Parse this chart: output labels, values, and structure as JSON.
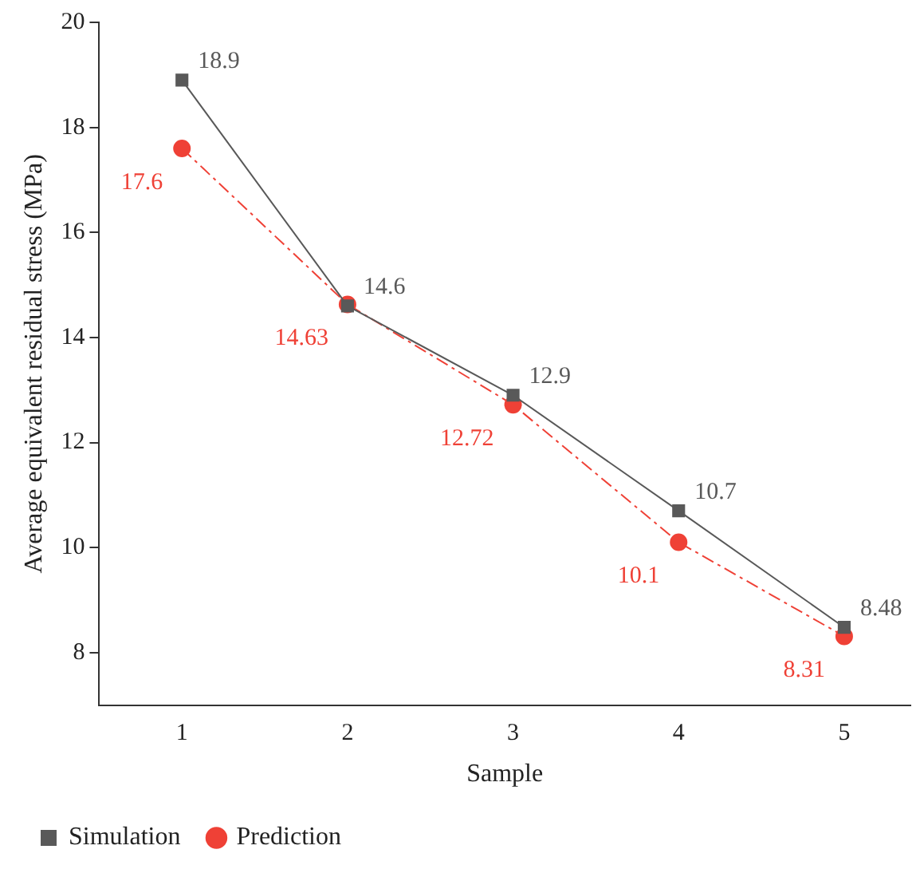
{
  "chart_data": {
    "type": "line",
    "xlabel": "Sample",
    "ylabel": "Average equivalent residual stress (MPa)",
    "x": [
      1,
      2,
      3,
      4,
      5
    ],
    "xlim": [
      0.5,
      5.4
    ],
    "xticks": [
      1,
      2,
      3,
      4,
      5
    ],
    "ylim": [
      7,
      20
    ],
    "yticks": [
      8,
      10,
      12,
      14,
      16,
      18,
      20
    ],
    "grid": false,
    "legend": "bottom left",
    "series": [
      {
        "name": "Simulation",
        "color": "#595959",
        "marker": "square",
        "line_style": "solid",
        "values": [
          18.9,
          14.6,
          12.9,
          10.7,
          8.48
        ],
        "value_labels": [
          "18.9",
          "14.6",
          "12.9",
          "10.7",
          "8.48"
        ]
      },
      {
        "name": "Prediction",
        "color": "#ef4136",
        "marker": "circle",
        "line_style": "dashed",
        "values": [
          17.6,
          14.63,
          12.72,
          10.1,
          8.31
        ],
        "value_labels": [
          "17.6",
          "14.63",
          "12.72",
          "10.1",
          "8.31"
        ]
      }
    ]
  }
}
